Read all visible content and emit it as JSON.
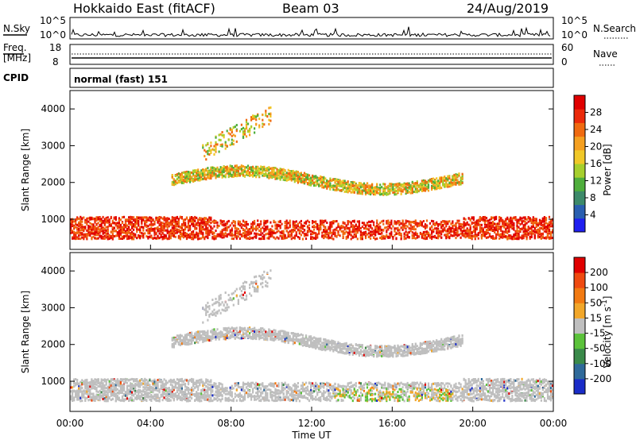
{
  "header": {
    "station": "Hokkaido East (fitACF)",
    "beam": "Beam 03",
    "date": "24/Aug/2019"
  },
  "top_panels": {
    "nsky_label": "N.Sky",
    "nsky_ticks": [
      "10^5",
      "10^0"
    ],
    "nsearch_label": "N.Search",
    "nsearch_ticks": [
      "10^5",
      "10^0"
    ],
    "freq_label_1": "Freq.",
    "freq_label_2": "[MHz]",
    "freq_ticks": [
      "18",
      "8"
    ],
    "nave_label": "Nave",
    "nave_ticks": [
      "60",
      "0"
    ],
    "cpid_label": "CPID",
    "cpid_text": "normal (fast) 151"
  },
  "chart_data": [
    {
      "type": "heatmap",
      "title": "",
      "xlabel": "Time UT",
      "ylabel": "Slant Range [km]",
      "x_ticks": [
        "00:00",
        "04:00",
        "08:00",
        "12:00",
        "16:00",
        "20:00",
        "00:00"
      ],
      "y_ticks": [
        "1000",
        "2000",
        "3000",
        "4000"
      ],
      "ylim": [
        180,
        4500
      ],
      "colorbar": {
        "label": "Power [dB]",
        "ticks": [
          "4",
          "8",
          "12",
          "16",
          "20",
          "24",
          "28"
        ],
        "colors": [
          "#1f1ff0",
          "#2a5fb0",
          "#3d8a6a",
          "#4fae3c",
          "#a6cf2d",
          "#f0c828",
          "#f5a020",
          "#f06a10",
          "#ec2a0a",
          "#e00000"
        ]
      }
    },
    {
      "type": "heatmap",
      "title": "",
      "xlabel": "Time UT",
      "ylabel": "Slant Range [km]",
      "x_ticks": [
        "00:00",
        "04:00",
        "08:00",
        "12:00",
        "16:00",
        "20:00",
        "00:00"
      ],
      "y_ticks": [
        "1000",
        "2000",
        "3000",
        "4000"
      ],
      "ylim": [
        180,
        4500
      ],
      "colorbar": {
        "label": "Velocity [m s^-1]",
        "ticks": [
          "200",
          "100",
          "50",
          "15",
          "-15",
          "-50",
          "-100",
          "-200"
        ],
        "colors": [
          "#1a2cc8",
          "#2f6a9a",
          "#3a8a4a",
          "#5bc23a",
          "#bfbfbf",
          "#f2a72a",
          "#f27a12",
          "#ef4a10",
          "#e00000"
        ]
      }
    }
  ]
}
